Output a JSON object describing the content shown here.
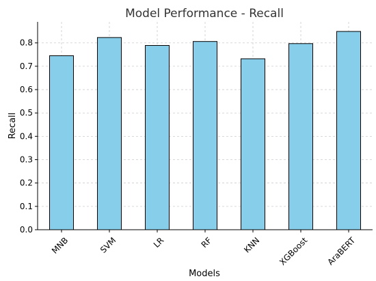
{
  "chart_data": {
    "type": "bar",
    "title": "Model Performance - Recall",
    "xlabel": "Models",
    "ylabel": "Recall",
    "categories": [
      "MNB",
      "SVM",
      "LR",
      "RF",
      "KNN",
      "XGBoost",
      "AraBERT"
    ],
    "values": [
      0.745,
      0.823,
      0.789,
      0.806,
      0.732,
      0.797,
      0.849
    ],
    "ylim": [
      0,
      0.89
    ],
    "yticks": [
      0.0,
      0.1,
      0.2,
      0.3,
      0.4,
      0.5,
      0.6,
      0.7,
      0.8
    ],
    "ytick_labels": [
      "0.0",
      "0.1",
      "0.2",
      "0.3",
      "0.4",
      "0.5",
      "0.6",
      "0.7",
      "0.8"
    ],
    "grid": true,
    "bar_color": "#87CEEB",
    "edge_color": "#000000"
  }
}
